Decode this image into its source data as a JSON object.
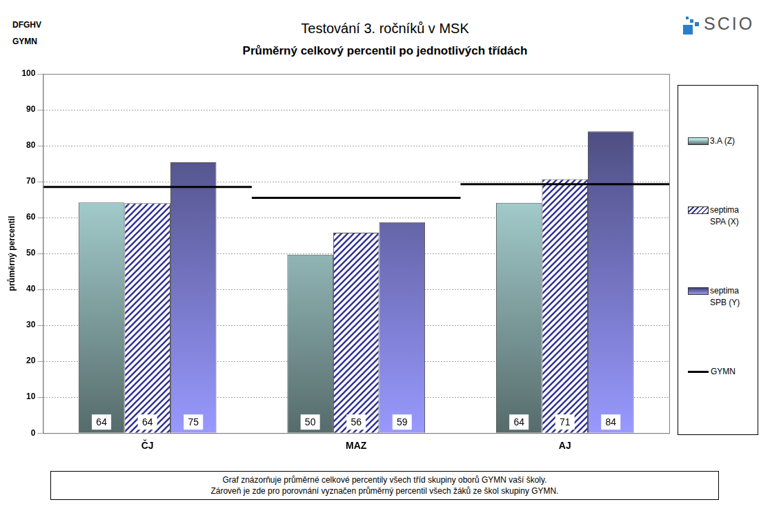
{
  "chart_data": {
    "type": "bar",
    "title": "Testování 3. ročníků v MSK",
    "subtitle": "Průměrný celkový percentil po jednotlivých třídách",
    "y_label": "průměrný percentil",
    "categories": [
      "ČJ",
      "MAZ",
      "AJ"
    ],
    "series": [
      {
        "name": "3.A (Z)",
        "color": "#ccffff",
        "values": [
          64.2,
          49.7,
          64.1
        ],
        "value_labels": [
          "64",
          "50",
          "64"
        ]
      },
      {
        "name": "septima SPA (X)",
        "color": "#333399",
        "values": [
          64.0,
          55.8,
          70.7
        ],
        "value_labels": [
          "64",
          "56",
          "71"
        ]
      },
      {
        "name": "septima SPB (Y)",
        "color": "#9999ff",
        "values": [
          75.4,
          58.7,
          84.0
        ],
        "value_labels": [
          "75",
          "59",
          "84"
        ]
      },
      {
        "name": "GYMN",
        "type": "line",
        "color": "#000000",
        "values": [
          68.5,
          65.5,
          69.3
        ]
      }
    ],
    "ylim": [
      0,
      100
    ],
    "yticks": [
      0,
      10,
      20,
      30,
      40,
      50,
      60,
      70,
      80,
      90,
      100
    ],
    "grid": true,
    "legend": "right",
    "data_labels": true,
    "annotations": {
      "corner": [
        "DFGHV",
        "GYMN"
      ],
      "logo": "SCIO",
      "note": [
        "Graf znázorňuje průměrné celkové percentily všech tříd skupiny oborů GYMN vaší školy.",
        "Zároveň je zde pro porovnání vyznačen průměrný percentil všech žáků ze škol skupiny GYMN."
      ]
    }
  }
}
